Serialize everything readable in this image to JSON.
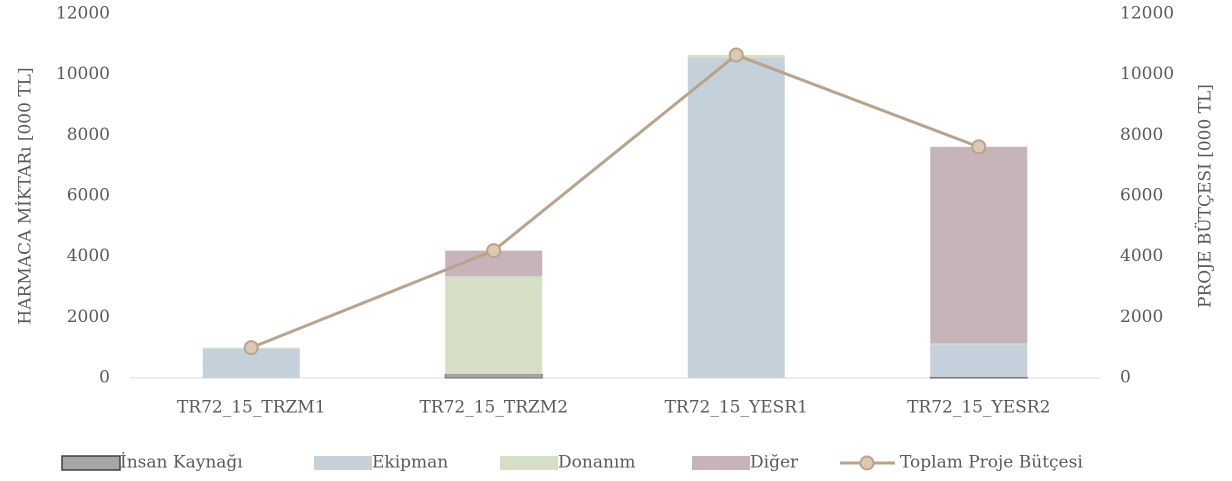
{
  "chart_data": {
    "type": "bar",
    "stacked": true,
    "categories": [
      "TR72_15_TRZM1",
      "TR72_15_TRZM2",
      "TR72_15_YESR1",
      "TR72_15_YESR2"
    ],
    "ylabel": "HARMACA MİKTARı [000 TL]",
    "y2label": "PROJE BÜTÇESI [000 TL]",
    "ylim": [
      0,
      12000
    ],
    "yticks": [
      0,
      2000,
      4000,
      6000,
      8000,
      10000,
      12000
    ],
    "y2lim": [
      0,
      12000
    ],
    "y2ticks": [
      0,
      2000,
      4000,
      6000,
      8000,
      10000,
      12000
    ],
    "legend": "bottom",
    "series": [
      {
        "name": "İnsan Kaynağı",
        "color": "#a6a6a6",
        "values": [
          0,
          120,
          0,
          30
        ]
      },
      {
        "name": "Ekipman",
        "color": "#c5d1da",
        "values": [
          960,
          0,
          10550,
          1080
        ]
      },
      {
        "name": "Donanım",
        "color": "#d5dfc5",
        "values": [
          40,
          3230,
          100,
          30
        ]
      },
      {
        "name": "Diğer",
        "color": "#c7b3ba",
        "values": [
          0,
          850,
          0,
          6480
        ]
      },
      {
        "name": "Toplam Proje Bütçesi",
        "color": "#b8a48a",
        "type": "line",
        "axis": "y2",
        "values": [
          1000,
          4200,
          10650,
          7620
        ]
      }
    ]
  }
}
